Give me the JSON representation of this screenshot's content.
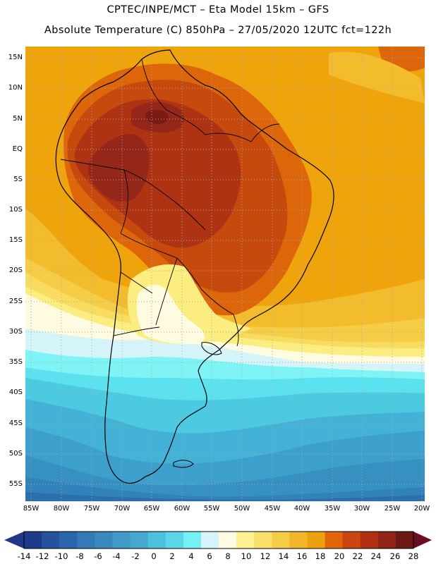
{
  "header": {
    "line1": "CPTEC/INPE/MCT –  Eta Model 15km – GFS",
    "line2": "Absolute Temperature (C) 850hPa – 27/05/2020 12UTC fct=122h"
  },
  "map": {
    "lat_labels": [
      "15N",
      "10N",
      "5N",
      "EQ",
      "5S",
      "10S",
      "15S",
      "20S",
      "25S",
      "30S",
      "35S",
      "40S",
      "45S",
      "50S",
      "55S"
    ],
    "lon_labels": [
      "85W",
      "80W",
      "75W",
      "70W",
      "65W",
      "60W",
      "55W",
      "50W",
      "45W",
      "40W",
      "35W",
      "30W",
      "25W",
      "20W"
    ],
    "colors": {
      "c28": "#7a1a12",
      "c26": "#94261a",
      "c24": "#ad3312",
      "c22": "#c6490e",
      "c20": "#dd660b",
      "c18": "#f0a40c",
      "c16": "#f3bc2c",
      "c14": "#f5cd46",
      "c12": "#f7dc60",
      "c10": "#fbed80",
      "c8": "#fffbe0",
      "c6": "#d4f4fa",
      "c4": "#7ef4f7",
      "c2": "#5ce2ee",
      "c0": "#4ccae2",
      "cm2": "#44b2d6",
      "cm4": "#3d9fcb",
      "cm6": "#3790c2",
      "cm8": "#3181ba",
      "cm10": "#2b6fad"
    }
  },
  "colorbar": {
    "labels": [
      "-14",
      "-12",
      "-10",
      "-8",
      "-6",
      "-4",
      "-2",
      "0",
      "2",
      "4",
      "6",
      "8",
      "10",
      "12",
      "14",
      "16",
      "18",
      "20",
      "22",
      "24",
      "26",
      "28"
    ],
    "colors": [
      "#1e3a8a",
      "#25519f",
      "#2b66ac",
      "#3279b5",
      "#3a89be",
      "#4099c7",
      "#46a8cf",
      "#4cc0dc",
      "#5ad6e8",
      "#74f0f6",
      "#d6f4fb",
      "#fffbe2",
      "#fdf192",
      "#f9e06a",
      "#f5cc45",
      "#f2b62a",
      "#eda10f",
      "#e0650b",
      "#cb4510",
      "#b13014",
      "#8f2417",
      "#6c1814"
    ],
    "low_color": "#22378a",
    "high_color": "#6a0d22"
  }
}
